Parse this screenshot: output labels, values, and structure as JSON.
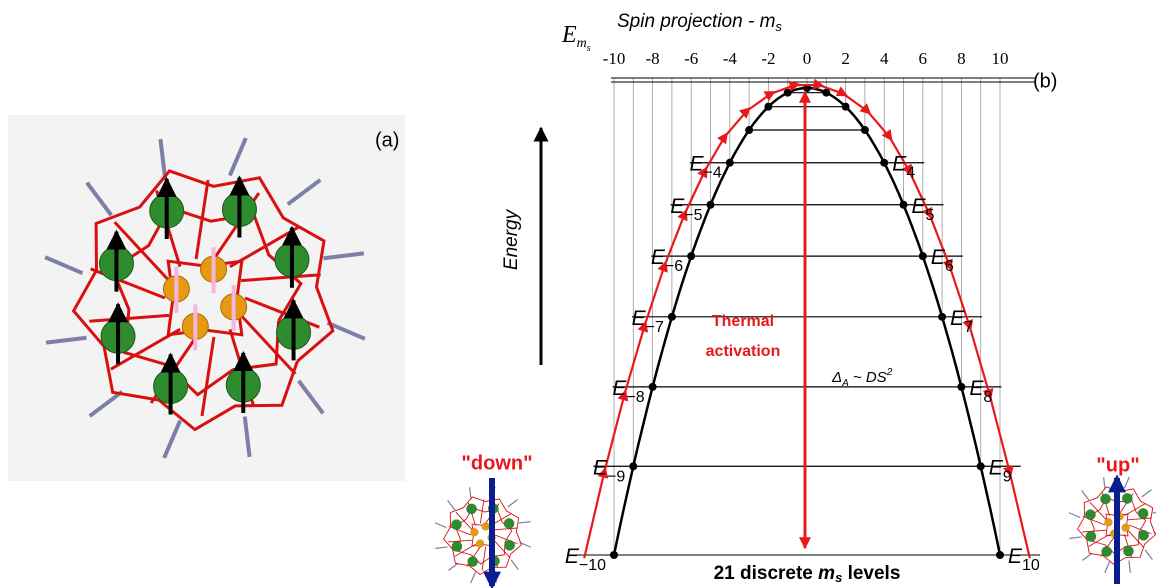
{
  "panel_a": {
    "label": "(a)"
  },
  "panel_b": {
    "label": "(b)",
    "energy_symbol": {
      "main": "E",
      "sub": "m",
      "subsub": "s"
    },
    "axis_title": {
      "main": "Spin projection - m",
      "sub": "s"
    },
    "ticks": [
      "-10",
      "-8",
      "-6",
      "-4",
      "-2",
      "0",
      "2",
      "4",
      "6",
      "8",
      "10"
    ],
    "energy_axis": "Energy",
    "left_levels": [
      {
        "symbol": "E",
        "index": "−4"
      },
      {
        "symbol": "E",
        "index": "−5"
      },
      {
        "symbol": "E",
        "index": "−6"
      },
      {
        "symbol": "E",
        "index": "−7"
      },
      {
        "symbol": "E",
        "index": "−8"
      },
      {
        "symbol": "E",
        "index": "−9"
      },
      {
        "symbol": "E",
        "index": "−10"
      }
    ],
    "right_levels": [
      {
        "symbol": "E",
        "index": "4"
      },
      {
        "symbol": "E",
        "index": "5"
      },
      {
        "symbol": "E",
        "index": "6"
      },
      {
        "symbol": "E",
        "index": "7"
      },
      {
        "symbol": "E",
        "index": "8"
      },
      {
        "symbol": "E",
        "index": "9"
      },
      {
        "symbol": "E",
        "index": "10"
      }
    ],
    "thermal": [
      "Thermal",
      "activation"
    ],
    "barrier": {
      "delta": "Δ",
      "sub": "A",
      "rest": " ~ DS",
      "sup": "2"
    },
    "footer": {
      "pre": "21 discrete ",
      "m": "m",
      "sub": "s",
      "post": " levels"
    },
    "down": "\"down\"",
    "up": "\"up\""
  }
}
